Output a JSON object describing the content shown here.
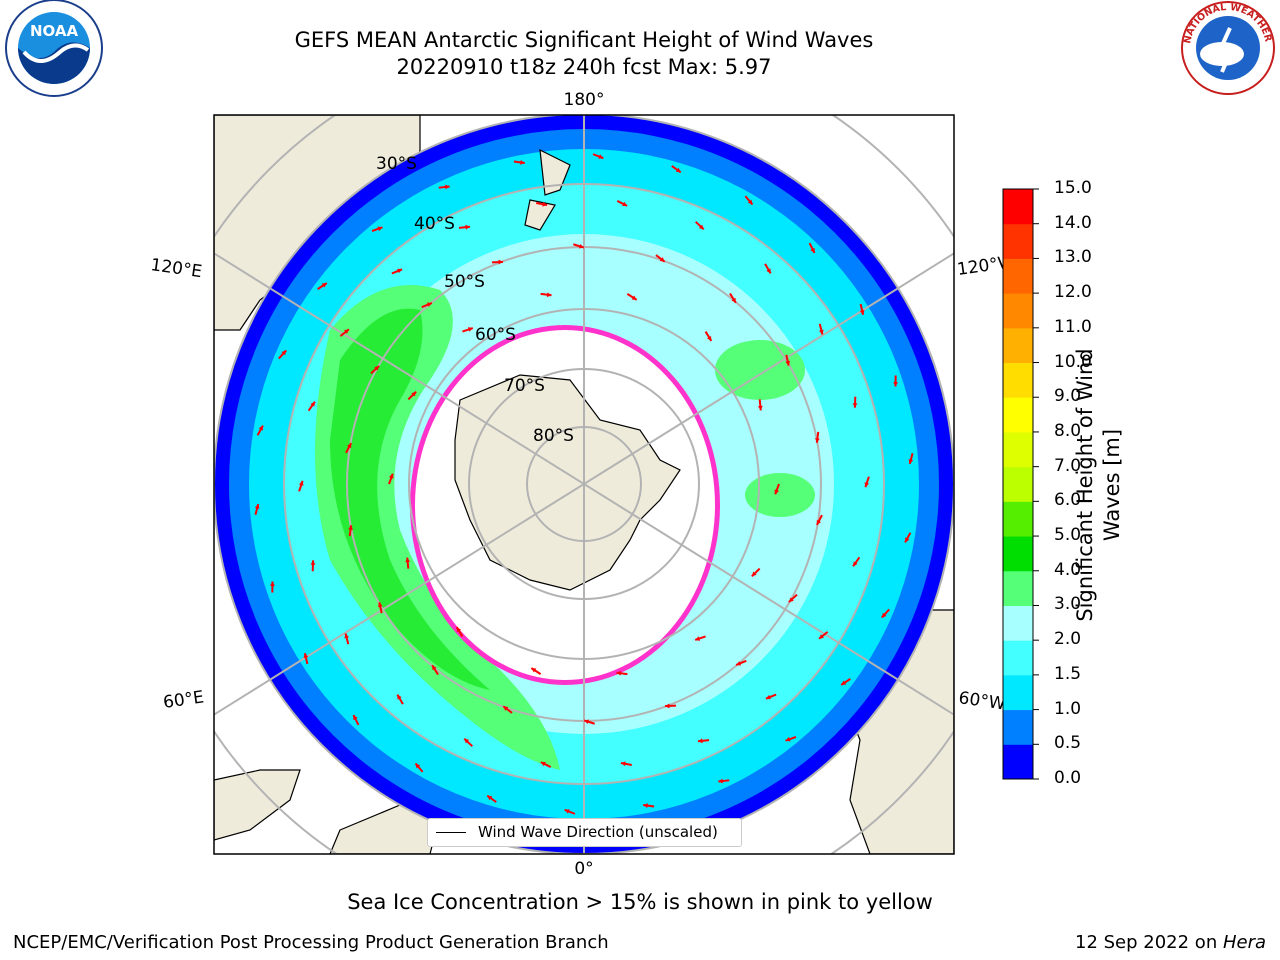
{
  "title": {
    "line1": "GEFS MEAN Antarctic Significant Height of Wind Waves",
    "line2": "20220910 t18z 240h fcst   Max: 5.97"
  },
  "map": {
    "projection": "south-polar-stereographic",
    "longitude_labels": [
      "180°",
      "120°E",
      "120°W",
      "60°E",
      "60°W",
      "0°"
    ],
    "latitude_labels": [
      "30°S",
      "40°S",
      "50°S",
      "60°S",
      "70°S",
      "80°S"
    ],
    "legend_label": "Wind Wave Direction (unscaled)",
    "arrow_color": "#ff0000",
    "land_color": "#efebdb",
    "sea_ice_color": "#ff33cc"
  },
  "colorbar": {
    "label": "Significant Height of Wind Waves [m]",
    "ticks": [
      "0.0",
      "0.5",
      "1.0",
      "1.5",
      "2.0",
      "3.0",
      "4.0",
      "5.0",
      "6.0",
      "7.0",
      "8.0",
      "9.0",
      "10.0",
      "11.0",
      "12.0",
      "13.0",
      "14.0",
      "15.0"
    ],
    "colors": [
      "#0000ff",
      "#0080ff",
      "#00e8ff",
      "#44ffff",
      "#a8ffff",
      "#55ff77",
      "#00dd00",
      "#55ee00",
      "#bbff00",
      "#ddff00",
      "#ffff00",
      "#ffdd00",
      "#ffb000",
      "#ff8800",
      "#ff6600",
      "#ff3300",
      "#ff0000"
    ]
  },
  "captions": {
    "sea_ice_note": "Sea Ice Concentration > 15% is shown in pink to yellow",
    "footer_left": "NCEP/EMC/Verification Post Processing Product Generation Branch",
    "footer_date": "12 Sep 2022 on ",
    "footer_machine": "Hera"
  },
  "logos": {
    "left": "NOAA",
    "right": "NATIONAL WEATHER SERVICE"
  }
}
